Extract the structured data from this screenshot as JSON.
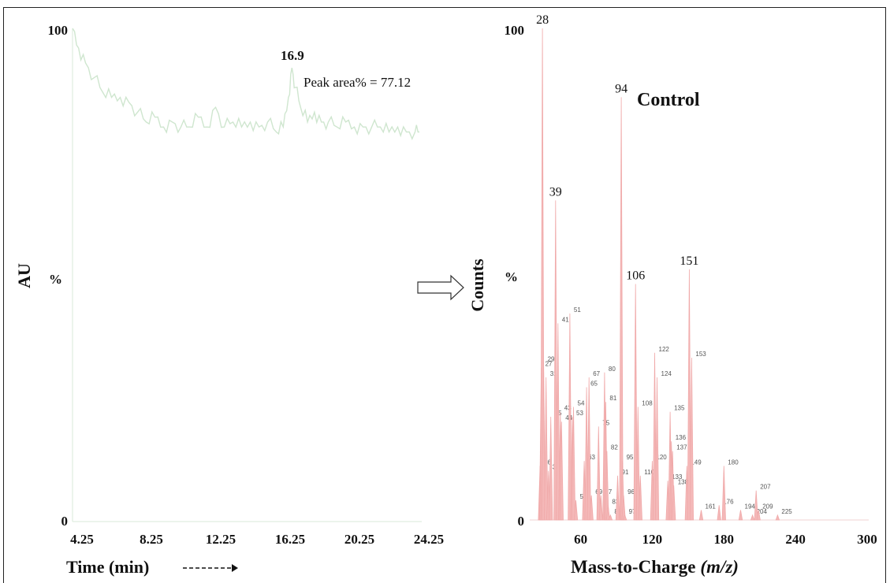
{
  "left": {
    "y_top_label": "100",
    "y_mid_label": "%",
    "y_zero_label": "0",
    "y_axis_title": "AU",
    "x_axis_title": "Time (min)",
    "x_ticks": [
      "4.25",
      "8.25",
      "12.25",
      "16.25",
      "20.25",
      "24.25"
    ],
    "peak_label": "16.9",
    "peak_note": "Peak area% = 77.12"
  },
  "right": {
    "y_top_label": "100",
    "y_mid_label": "%",
    "y_zero_label": "0",
    "y_axis_title": "Counts",
    "x_axis_title": "Mass-to-Charge",
    "x_axis_title_unit": "(m/z)",
    "x_ticks": [
      "60",
      "120",
      "180",
      "240",
      "300"
    ],
    "legend": "Control"
  },
  "colors": {
    "chromatogram": "#cfe6cf",
    "spectrum": "#f4b8b8"
  },
  "chart_data": [
    {
      "type": "line",
      "xlabel": "Time (min)",
      "ylabel": "AU",
      "xlim": [
        4.25,
        24.25
      ],
      "ylim": [
        0,
        100
      ],
      "annotation": "Peak area% = 77.12",
      "series": [
        {
          "x": [
            4.25,
            4.6,
            5.0,
            5.5,
            6.0,
            6.5,
            7.0,
            7.5,
            8.0,
            8.5,
            9.0,
            9.5,
            10.0,
            10.5,
            11.0,
            11.5,
            12.0,
            12.5,
            13.0,
            13.5,
            14.0,
            14.5,
            15.0,
            15.5,
            16.0,
            16.4,
            16.7,
            16.9,
            17.1,
            17.4,
            17.8,
            18.2,
            18.6,
            19.0,
            19.5,
            20.0,
            20.5,
            21.0,
            21.5,
            22.0,
            22.5,
            23.0,
            23.5,
            24.0,
            24.25
          ],
          "values": [
            100,
            96,
            93,
            90,
            87,
            86,
            86,
            85,
            83,
            81,
            82,
            80,
            81,
            80,
            80,
            82,
            80,
            84,
            80,
            81,
            80,
            81,
            80,
            81,
            79,
            80,
            86,
            92,
            88,
            84,
            81,
            83,
            81,
            81,
            80,
            81,
            80,
            80,
            80,
            80,
            79,
            80,
            79,
            79,
            79
          ]
        }
      ]
    },
    {
      "type": "bar",
      "xlabel": "Mass-to-Charge (m/z)",
      "ylabel": "Counts",
      "xlim": [
        20,
        300
      ],
      "ylim": [
        0,
        100
      ],
      "legend": [
        "Control"
      ],
      "peaks": [
        {
          "mz": 26,
          "value": 11,
          "label": "26"
        },
        {
          "mz": 27,
          "value": 31,
          "label": "27"
        },
        {
          "mz": 28,
          "value": 100,
          "label": "28"
        },
        {
          "mz": 29,
          "value": 32,
          "label": "29"
        },
        {
          "mz": 31,
          "value": 29,
          "label": "31"
        },
        {
          "mz": 33,
          "value": 10,
          "label": "33"
        },
        {
          "mz": 35,
          "value": 21,
          "label": "35"
        },
        {
          "mz": 39,
          "value": 65,
          "label": "39"
        },
        {
          "mz": 41,
          "value": 40,
          "label": "41"
        },
        {
          "mz": 43,
          "value": 22,
          "label": "43"
        },
        {
          "mz": 44,
          "value": 20,
          "label": "44"
        },
        {
          "mz": 51,
          "value": 42,
          "label": "51"
        },
        {
          "mz": 53,
          "value": 21,
          "label": "53"
        },
        {
          "mz": 54,
          "value": 23,
          "label": "54"
        },
        {
          "mz": 56,
          "value": 4,
          "label": "56"
        },
        {
          "mz": 63,
          "value": 12,
          "label": "63"
        },
        {
          "mz": 65,
          "value": 27,
          "label": "65"
        },
        {
          "mz": 67,
          "value": 29,
          "label": "67"
        },
        {
          "mz": 69,
          "value": 5,
          "label": "69"
        },
        {
          "mz": 75,
          "value": 19,
          "label": "75"
        },
        {
          "mz": 77,
          "value": 5,
          "label": "77"
        },
        {
          "mz": 80,
          "value": 30,
          "label": "80"
        },
        {
          "mz": 81,
          "value": 24,
          "label": "81"
        },
        {
          "mz": 82,
          "value": 14,
          "label": "82"
        },
        {
          "mz": 83,
          "value": 3,
          "label": "83"
        },
        {
          "mz": 85,
          "value": 1,
          "label": "85"
        },
        {
          "mz": 91,
          "value": 9,
          "label": "91"
        },
        {
          "mz": 94,
          "value": 86,
          "label": "94"
        },
        {
          "mz": 95,
          "value": 12,
          "label": "95"
        },
        {
          "mz": 96,
          "value": 5,
          "label": "96"
        },
        {
          "mz": 97,
          "value": 1,
          "label": "97"
        },
        {
          "mz": 106,
          "value": 48,
          "label": "106"
        },
        {
          "mz": 108,
          "value": 23,
          "label": "108"
        },
        {
          "mz": 110,
          "value": 9,
          "label": "110"
        },
        {
          "mz": 120,
          "value": 12,
          "label": "120"
        },
        {
          "mz": 122,
          "value": 34,
          "label": "122"
        },
        {
          "mz": 124,
          "value": 29,
          "label": "124"
        },
        {
          "mz": 133,
          "value": 8,
          "label": "133"
        },
        {
          "mz": 135,
          "value": 22,
          "label": "135"
        },
        {
          "mz": 136,
          "value": 16,
          "label": "136"
        },
        {
          "mz": 137,
          "value": 14,
          "label": "137"
        },
        {
          "mz": 138,
          "value": 7,
          "label": "138"
        },
        {
          "mz": 149,
          "value": 11,
          "label": "149"
        },
        {
          "mz": 151,
          "value": 51,
          "label": "151"
        },
        {
          "mz": 153,
          "value": 33,
          "label": "153"
        },
        {
          "mz": 161,
          "value": 2,
          "label": "161"
        },
        {
          "mz": 176,
          "value": 3,
          "label": "176"
        },
        {
          "mz": 180,
          "value": 11,
          "label": "180"
        },
        {
          "mz": 194,
          "value": 2,
          "label": "194"
        },
        {
          "mz": 204,
          "value": 1,
          "label": "204"
        },
        {
          "mz": 207,
          "value": 6,
          "label": "207"
        },
        {
          "mz": 209,
          "value": 2,
          "label": "209"
        },
        {
          "mz": 225,
          "value": 1,
          "label": "225"
        }
      ]
    }
  ]
}
